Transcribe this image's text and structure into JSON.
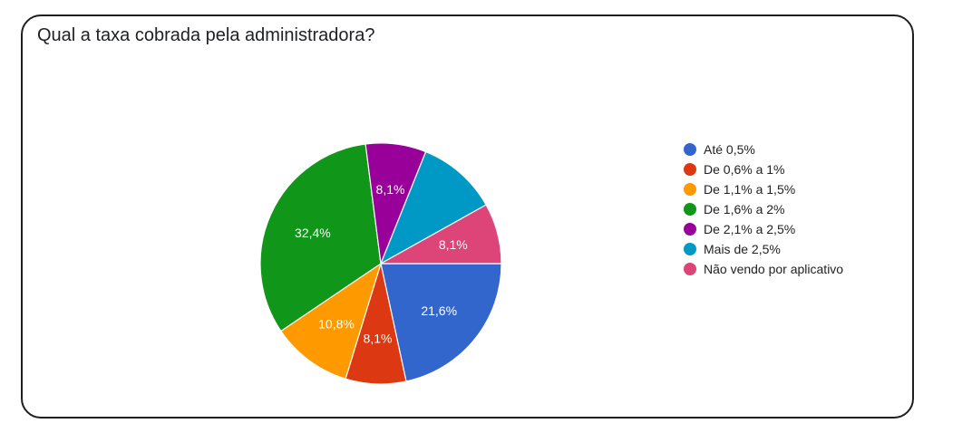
{
  "title": "Qual a taxa cobrada pela administradora?",
  "chart_data": {
    "type": "pie",
    "title": "Qual a taxa cobrada pela administradora?",
    "legend_position": "right",
    "slices": [
      {
        "name": "Até 0,5%",
        "value": 21.6,
        "label": "21,6%",
        "color": "#3366cc"
      },
      {
        "name": "De 0,6% a 1%",
        "value": 8.1,
        "label": "8,1%",
        "color": "#dc3912"
      },
      {
        "name": "De 1,1% a 1,5%",
        "value": 10.8,
        "label": "10,8%",
        "color": "#ff9900"
      },
      {
        "name": "De 1,6% a 2%",
        "value": 32.4,
        "label": "32,4%",
        "color": "#109618"
      },
      {
        "name": "De 2,1% a 2,5%",
        "value": 8.1,
        "label": "8,1%",
        "color": "#990099"
      },
      {
        "name": "Mais de 2,5%",
        "value": 10.8,
        "label": "",
        "color": "#0099c6"
      },
      {
        "name": "Não vendo por aplicativo",
        "value": 8.1,
        "label": "8,1%",
        "color": "#dd4477"
      }
    ]
  }
}
